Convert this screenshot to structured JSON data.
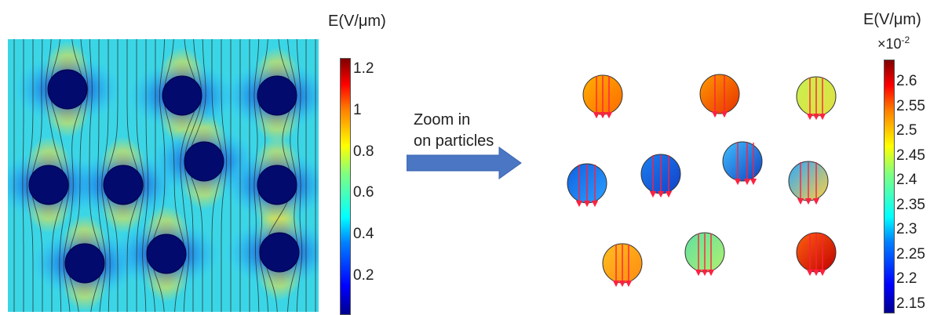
{
  "left_colorbar": {
    "title": "E(V/μm)",
    "ticks": [
      "1.2",
      "1",
      "0.8",
      "0.6",
      "0.4",
      "0.2"
    ]
  },
  "annotation": {
    "line1": "Zoom in",
    "line2": "on particles"
  },
  "right_colorbar": {
    "title": "E(V/μm)",
    "exponent_base": "×10",
    "exponent_power": "-2",
    "ticks": [
      "2.6",
      "2.55",
      "2.5",
      "2.45",
      "2.4",
      "2.35",
      "2.3",
      "2.25",
      "2.2",
      "2.15"
    ]
  }
}
